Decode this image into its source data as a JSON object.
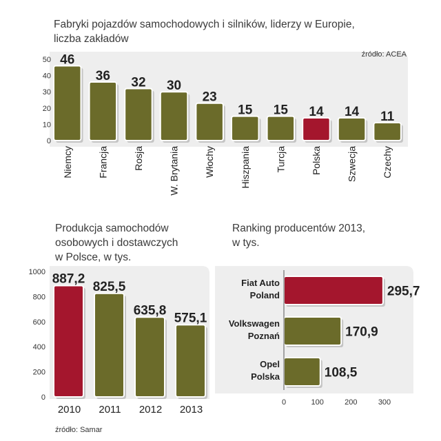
{
  "colors": {
    "bar": "#6b6b2a",
    "highlight": "#a4162d",
    "bar_edge": "#ffffff",
    "shadow": "#c4c4c4",
    "panel": "#eeeeee",
    "axis": "#555555"
  },
  "chart_data": [
    {
      "id": "factories",
      "type": "bar",
      "title": [
        "Fabryki pojazdów samochodowych i silników, liderzy w Europie,",
        "liczba zakładów"
      ],
      "source": "źródło: ACEA",
      "categories": [
        "Niemcy",
        "Francja",
        "Rosja",
        "W. Brytania",
        "Włochy",
        "Hiszpania",
        "Turcja",
        "Polska",
        "Szwecja",
        "Czechy"
      ],
      "values": [
        46,
        36,
        32,
        30,
        23,
        15,
        15,
        14,
        14,
        11
      ],
      "value_labels": [
        "46",
        "36",
        "32",
        "30",
        "23",
        "15",
        "15",
        "14",
        "14",
        "11"
      ],
      "highlight": [
        "Polska"
      ],
      "y_ticks": [
        0,
        10,
        20,
        30,
        40,
        50
      ],
      "y_tick_labels": [
        "0",
        "10",
        "20",
        "30",
        "40",
        "50"
      ],
      "ylim": [
        0,
        50
      ],
      "xlabel": "",
      "ylabel": ""
    },
    {
      "id": "production",
      "type": "bar",
      "title": [
        "Produkcja samochodów",
        "osobowych i dostawczych",
        "w Polsce, w tys."
      ],
      "source": "źródło: Samar",
      "categories": [
        "2010",
        "2011",
        "2012",
        "2013"
      ],
      "values": [
        887.2,
        825.5,
        635.8,
        575.1
      ],
      "value_labels": [
        "887,2",
        "825,5",
        "635,8",
        "575,1"
      ],
      "highlight": [
        "2010"
      ],
      "y_ticks": [
        0,
        200,
        400,
        600,
        800,
        1000
      ],
      "y_tick_labels": [
        "0",
        "200",
        "400",
        "600",
        "800",
        "1000"
      ],
      "ylim": [
        0,
        1000
      ],
      "xlabel": "",
      "ylabel": ""
    },
    {
      "id": "ranking",
      "type": "bar",
      "orientation": "horizontal",
      "title": [
        "Ranking producentów 2013,",
        "w tys."
      ],
      "categories": [
        [
          "Fiat Auto",
          "Poland"
        ],
        [
          "Volkswagen",
          "Poznań"
        ],
        [
          "Opel",
          "Polska"
        ]
      ],
      "values": [
        295.7,
        170.9,
        108.5
      ],
      "value_labels": [
        "295,7",
        "170,9",
        "108,5"
      ],
      "highlight": [
        "Fiat Auto"
      ],
      "x_ticks": [
        0,
        100,
        200,
        300
      ],
      "x_tick_labels": [
        "0",
        "100",
        "200",
        "300"
      ],
      "xlim": [
        0,
        300
      ],
      "xlabel": "",
      "ylabel": ""
    }
  ]
}
